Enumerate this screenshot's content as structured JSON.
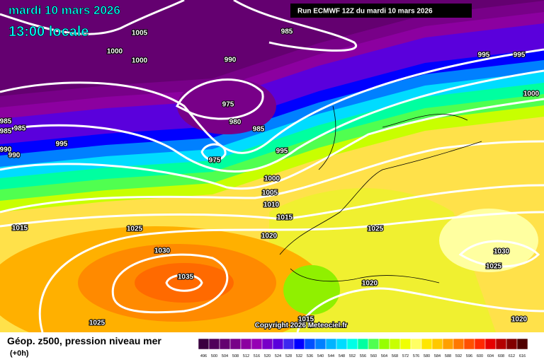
{
  "header": {
    "date": "mardi 10 mars 2026",
    "time": "13:00 locale",
    "run": "Run ECMWF 12Z du mardi 10 mars 2026"
  },
  "isobar_labels": [
    985,
    1005,
    1000,
    1000,
    990,
    975,
    980,
    985,
    975,
    995,
    985,
    985,
    985,
    990,
    990,
    995,
    995,
    1000,
    995,
    1000,
    1005,
    1010,
    1015,
    1020,
    1015,
    1025,
    1025,
    1030,
    1035,
    1030,
    1025,
    1020,
    1015,
    1025,
    1020
  ],
  "copyright": "Copyright 2026 Meteociel.fr",
  "legend": {
    "title": "Géop. z500, pression niveau mer",
    "step": "(+0h)",
    "labels": [
      496,
      500,
      504,
      508,
      512,
      516,
      520,
      524,
      528,
      532,
      536,
      540,
      544,
      548,
      552,
      556,
      560,
      564,
      568,
      572,
      576,
      580,
      584,
      588,
      592,
      596,
      600,
      604,
      608,
      612,
      616
    ],
    "colors": [
      "#3a0040",
      "#50005a",
      "#640070",
      "#780088",
      "#8c00a0",
      "#9600b4",
      "#7800c8",
      "#5a00dc",
      "#3c28f0",
      "#0000ff",
      "#0050ff",
      "#0080ff",
      "#00b4ff",
      "#00dcff",
      "#00ffe6",
      "#00ffa0",
      "#50ff50",
      "#96ff00",
      "#c8ff00",
      "#f0ff00",
      "#ffff64",
      "#ffe600",
      "#ffc800",
      "#ffa000",
      "#ff7800",
      "#ff5000",
      "#ff2800",
      "#e60000",
      "#b40000",
      "#820000",
      "#500000"
    ]
  }
}
